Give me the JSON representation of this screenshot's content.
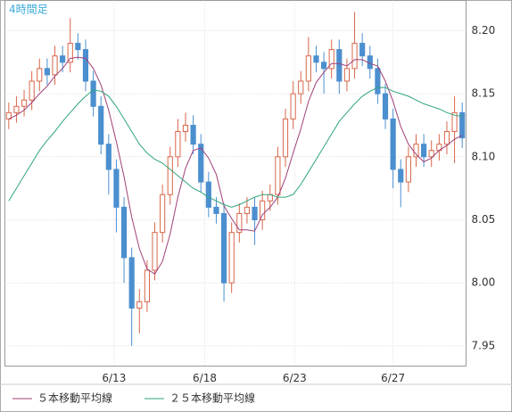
{
  "chart_data": {
    "type": "candlestick",
    "title": "4時間足",
    "x": [
      0,
      1,
      2,
      3,
      4,
      5,
      6,
      7,
      8,
      9,
      10,
      11,
      12,
      13,
      14,
      15,
      16,
      17,
      18,
      19,
      20,
      21,
      22,
      23,
      24,
      25,
      26,
      27,
      28,
      29,
      30,
      31,
      32,
      33,
      34,
      35,
      36,
      37,
      38,
      39,
      40,
      41,
      42,
      43,
      44,
      45,
      46,
      47,
      48,
      49,
      50,
      51,
      52,
      53,
      54,
      55,
      56,
      57,
      58,
      59
    ],
    "open": [
      8.13,
      8.135,
      8.14,
      8.145,
      8.16,
      8.17,
      8.165,
      8.18,
      8.175,
      8.19,
      8.185,
      8.16,
      8.14,
      8.11,
      8.09,
      8.06,
      8.02,
      7.98,
      7.985,
      8.01,
      8.04,
      8.07,
      8.1,
      8.12,
      8.125,
      8.11,
      8.08,
      8.06,
      8.055,
      8.0,
      8.04,
      8.055,
      8.06,
      8.05,
      8.065,
      8.07,
      8.1,
      8.13,
      8.15,
      8.16,
      8.18,
      8.175,
      8.17,
      8.185,
      8.16,
      8.17,
      8.19,
      8.18,
      8.17,
      8.15,
      8.13,
      8.09,
      8.08,
      8.1,
      8.11,
      8.1,
      8.105,
      8.11,
      8.12,
      8.135
    ],
    "high": [
      8.143,
      8.148,
      8.153,
      8.168,
      8.178,
      8.178,
      8.188,
      8.188,
      8.21,
      8.198,
      8.193,
      8.168,
      8.148,
      8.118,
      8.098,
      8.068,
      8.028,
      7.995,
      8.018,
      8.048,
      8.078,
      8.108,
      8.13,
      8.135,
      8.133,
      8.118,
      8.088,
      8.068,
      8.063,
      8.048,
      8.063,
      8.068,
      8.068,
      8.073,
      8.078,
      8.108,
      8.138,
      8.16,
      8.168,
      8.195,
      8.188,
      8.183,
      8.193,
      8.193,
      8.178,
      8.215,
      8.198,
      8.188,
      8.178,
      8.158,
      8.138,
      8.098,
      8.108,
      8.118,
      8.118,
      8.113,
      8.118,
      8.128,
      8.148,
      8.143
    ],
    "low": [
      8.122,
      8.127,
      8.132,
      8.137,
      8.152,
      8.157,
      8.157,
      8.167,
      8.167,
      8.177,
      8.152,
      8.132,
      8.102,
      8.07,
      8.04,
      8.0,
      7.95,
      7.96,
      7.977,
      8.002,
      8.032,
      8.062,
      8.092,
      8.112,
      8.102,
      8.072,
      8.052,
      8.047,
      7.985,
      7.992,
      8.032,
      8.047,
      8.03,
      8.042,
      8.057,
      8.062,
      8.092,
      8.122,
      8.142,
      8.152,
      8.167,
      8.15,
      8.162,
      8.15,
      8.152,
      8.162,
      8.172,
      8.162,
      8.142,
      8.122,
      8.075,
      8.06,
      8.072,
      8.092,
      8.092,
      8.092,
      8.097,
      8.102,
      8.095,
      8.107
    ],
    "close": [
      8.135,
      8.14,
      8.145,
      8.16,
      8.17,
      8.165,
      8.18,
      8.175,
      8.19,
      8.185,
      8.16,
      8.14,
      8.11,
      8.09,
      8.06,
      8.02,
      7.98,
      7.985,
      8.01,
      8.04,
      8.07,
      8.1,
      8.12,
      8.125,
      8.11,
      8.08,
      8.06,
      8.055,
      8.0,
      8.04,
      8.055,
      8.06,
      8.05,
      8.065,
      8.07,
      8.1,
      8.13,
      8.15,
      8.16,
      8.18,
      8.175,
      8.17,
      8.185,
      8.16,
      8.17,
      8.19,
      8.18,
      8.17,
      8.15,
      8.13,
      8.09,
      8.08,
      8.1,
      8.11,
      8.1,
      8.105,
      8.11,
      8.12,
      8.135,
      8.115
    ],
    "up_color": "#d8664a",
    "down_color": "#4b8fcf",
    "series": [
      {
        "name": "５本移動平均線",
        "color": "#a0407a",
        "values": [
          8.13,
          8.133,
          8.137,
          8.143,
          8.15,
          8.156,
          8.164,
          8.17,
          8.178,
          8.179,
          8.178,
          8.17,
          8.157,
          8.137,
          8.112,
          8.084,
          8.052,
          8.027,
          8.011,
          8.007,
          8.017,
          8.039,
          8.068,
          8.091,
          8.105,
          8.107,
          8.099,
          8.086,
          8.061,
          8.051,
          8.042,
          8.042,
          8.041,
          8.054,
          8.06,
          8.068,
          8.083,
          8.103,
          8.122,
          8.144,
          8.159,
          8.167,
          8.174,
          8.174,
          8.172,
          8.177,
          8.177,
          8.174,
          8.172,
          8.16,
          8.144,
          8.124,
          8.11,
          8.102,
          8.096,
          8.099,
          8.105,
          8.109,
          8.114,
          8.117
        ]
      },
      {
        "name": "２５本移動平均線",
        "color": "#2ea57a",
        "values": [
          8.065,
          8.075,
          8.085,
          8.095,
          8.105,
          8.113,
          8.12,
          8.128,
          8.135,
          8.142,
          8.148,
          8.153,
          8.152,
          8.148,
          8.14,
          8.13,
          8.12,
          8.11,
          8.103,
          8.098,
          8.095,
          8.09,
          8.085,
          8.08,
          8.075,
          8.072,
          8.068,
          8.065,
          8.062,
          8.06,
          8.062,
          8.065,
          8.068,
          8.07,
          8.07,
          8.068,
          8.068,
          8.07,
          8.078,
          8.088,
          8.098,
          8.108,
          8.118,
          8.128,
          8.135,
          8.142,
          8.148,
          8.152,
          8.155,
          8.155,
          8.152,
          8.15,
          8.148,
          8.145,
          8.142,
          8.14,
          8.138,
          8.135,
          8.133,
          8.132
        ]
      }
    ],
    "xlim": [
      0,
      60
    ],
    "xticks": [
      {
        "value": 14.2,
        "label": "6/13"
      },
      {
        "value": 26.0,
        "label": "6/18"
      },
      {
        "value": 37.7,
        "label": "6/23"
      },
      {
        "value": 50.5,
        "label": "6/27"
      }
    ],
    "ylim": [
      7.934,
      8.224
    ],
    "yticks": [
      7.95,
      {
        "value": 8.0,
        "label": "8.00"
      },
      8.05,
      {
        "value": 8.1,
        "label": "8.10"
      },
      8.15,
      {
        "value": 8.2,
        "label": "8.20"
      }
    ],
    "grid": true
  }
}
